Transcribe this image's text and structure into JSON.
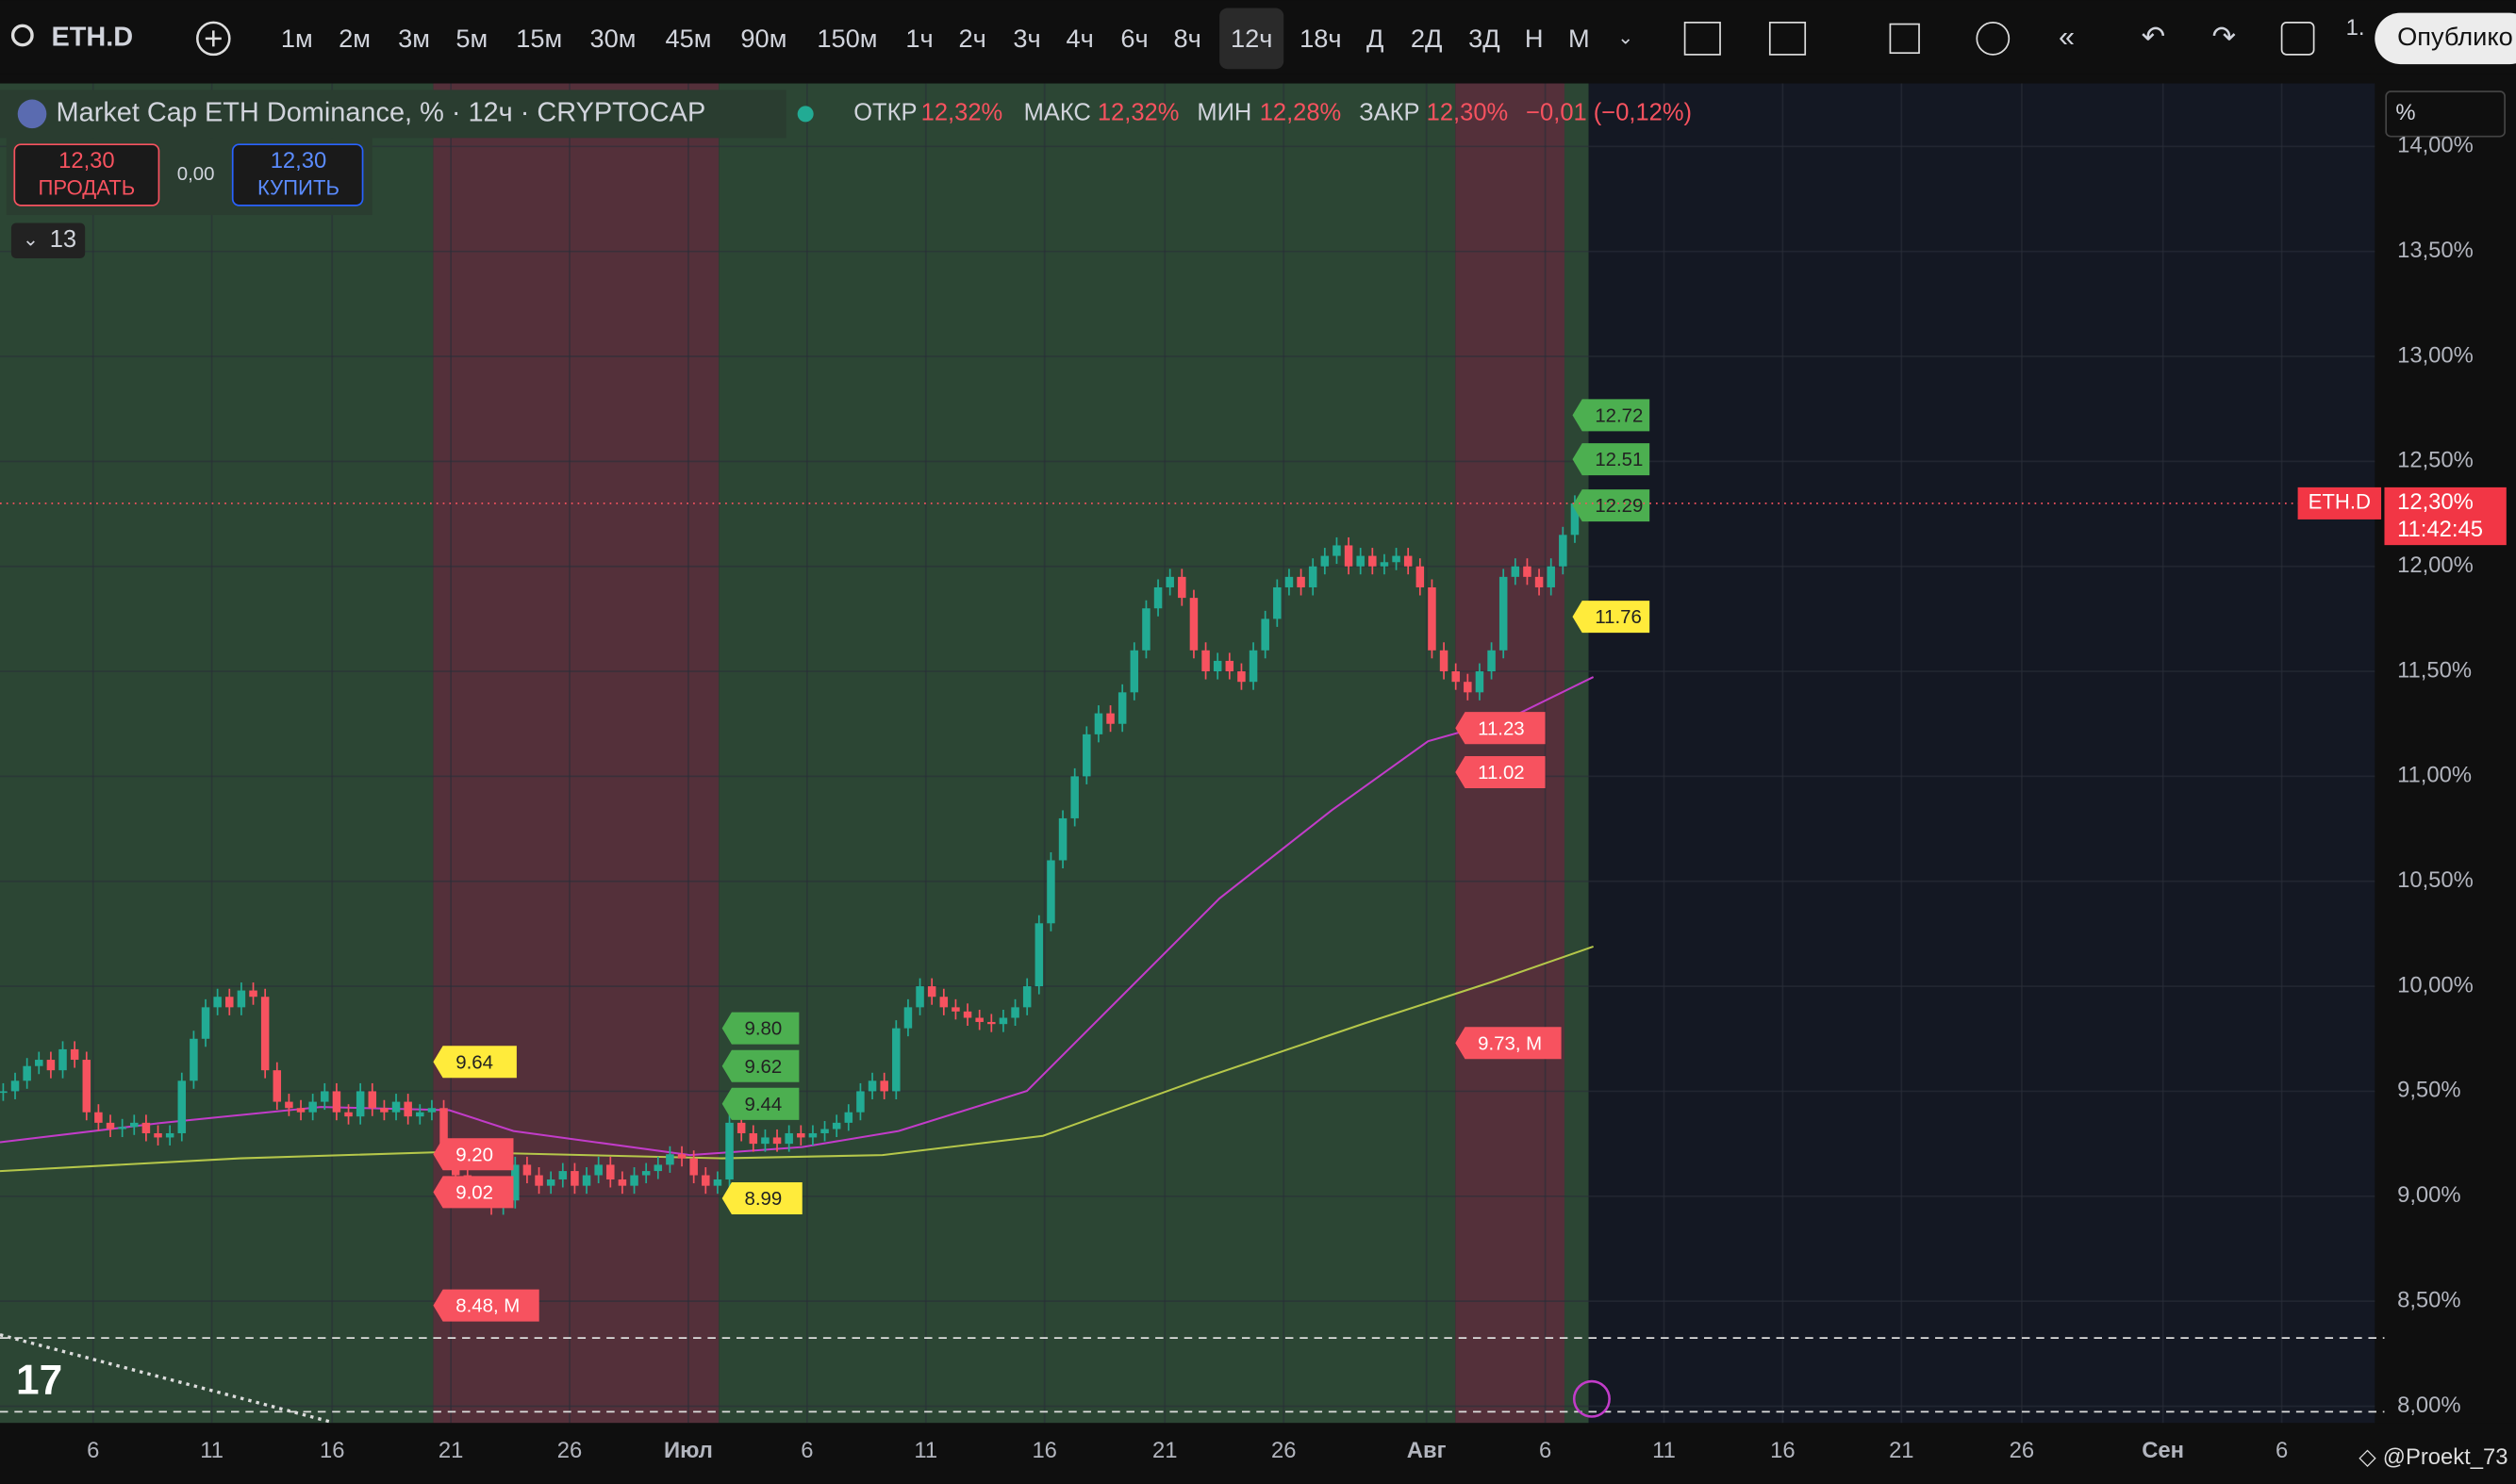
{
  "toolbar": {
    "symbol": "ETH.D",
    "intervals": [
      "1м",
      "2м",
      "3м",
      "5м",
      "15м",
      "30м",
      "45м",
      "90м",
      "150м",
      "1ч",
      "2ч",
      "3ч",
      "4ч",
      "6ч",
      "8ч",
      "12ч",
      "18ч",
      "Д",
      "2Д",
      "3Д",
      "Н",
      "М"
    ],
    "active_interval": "12ч",
    "counter": "1.",
    "publish": "Опублико"
  },
  "legend": {
    "title": "Market Cap ETH Dominance, % · 12ч · CRYPTOCAP",
    "open_label": "ОТКР",
    "open": "12,32%",
    "high_label": "МАКС",
    "high": "12,32%",
    "low_label": "МИН",
    "low": "12,28%",
    "close_label": "ЗАКР",
    "close": "12,30%",
    "change": "−0,01 (−0,12%)"
  },
  "trade": {
    "sell_price": "12,30",
    "sell_label": "ПРОДАТЬ",
    "spread": "0,00",
    "buy_price": "12,30",
    "buy_label": "КУПИТЬ",
    "indicators_count": "13"
  },
  "scale_mode": "%",
  "watermark": "@Proekt_73",
  "chart_data": {
    "type": "candlestick",
    "up_color": "#22ab94",
    "down_color": "#f7525f",
    "closes": [
      9.5,
      9.55,
      9.62,
      9.65,
      9.6,
      9.7,
      9.65,
      9.4,
      9.35,
      9.32,
      9.33,
      9.35,
      9.3,
      9.28,
      9.3,
      9.55,
      9.75,
      9.9,
      9.95,
      9.9,
      9.98,
      9.95,
      9.6,
      9.45,
      9.42,
      9.4,
      9.45,
      9.5,
      9.4,
      9.38,
      9.5,
      9.42,
      9.4,
      9.45,
      9.38,
      9.4,
      9.42,
      9.2,
      9.1,
      9.05,
      9.0,
      8.95,
      8.98,
      9.15,
      9.1,
      9.05,
      9.08,
      9.12,
      9.05,
      9.1,
      9.15,
      9.08,
      9.05,
      9.1,
      9.12,
      9.15,
      9.2,
      9.18,
      9.1,
      9.05,
      9.08,
      9.35,
      9.3,
      9.25,
      9.28,
      9.25,
      9.3,
      9.28,
      9.3,
      9.32,
      9.35,
      9.4,
      9.5,
      9.55,
      9.5,
      9.8,
      9.9,
      10.0,
      9.95,
      9.9,
      9.88,
      9.85,
      9.83,
      9.82,
      9.85,
      9.9,
      10.0,
      10.3,
      10.6,
      10.8,
      11.0,
      11.2,
      11.3,
      11.25,
      11.4,
      11.6,
      11.8,
      11.9,
      11.95,
      11.85,
      11.6,
      11.5,
      11.55,
      11.5,
      11.45,
      11.6,
      11.75,
      11.9,
      11.95,
      11.9,
      12.0,
      12.05,
      12.1,
      12.0,
      12.05,
      12.0,
      12.02,
      12.05,
      12.0,
      11.9,
      11.6,
      11.5,
      11.45,
      11.4,
      11.5,
      11.6,
      11.95,
      12.0,
      11.95,
      11.9,
      12.0,
      12.15,
      12.3
    ],
    "ylim": [
      7.92,
      14.3
    ],
    "yticks": [
      {
        "value": 14,
        "label": "14,00%"
      },
      {
        "value": 13.5,
        "label": "13,50%"
      },
      {
        "value": 13,
        "label": "13,00%"
      },
      {
        "value": 12.5,
        "label": "12,50%"
      },
      {
        "value": 12,
        "label": "12,00%"
      },
      {
        "value": 11.5,
        "label": "11,50%"
      },
      {
        "value": 11,
        "label": "11,00%"
      },
      {
        "value": 10.5,
        "label": "10,50%"
      },
      {
        "value": 10,
        "label": "10,00%"
      },
      {
        "value": 9.5,
        "label": "9,50%"
      },
      {
        "value": 9,
        "label": "9,00%"
      },
      {
        "value": 8.5,
        "label": "8,50%"
      },
      {
        "value": 8,
        "label": "8,00%"
      }
    ],
    "xticks": [
      "6",
      "11",
      "16",
      "21",
      "26",
      "Июл",
      "6",
      "11",
      "16",
      "21",
      "26",
      "Авг",
      "6",
      "11",
      "16",
      "21",
      "26",
      "Сен",
      "6"
    ],
    "grid": true,
    "price_tag": {
      "symbol": "ETH.D",
      "value": 12.3,
      "label": "12,30%",
      "countdown": "11:42:45"
    },
    "annotations": [
      {
        "value": 9.64,
        "label": "9.64",
        "color": "#ffeb3b"
      },
      {
        "value": 9.2,
        "label": "9.20",
        "color": "#f7525f"
      },
      {
        "value": 9.02,
        "label": "9.02",
        "color": "#f7525f"
      },
      {
        "value": 8.48,
        "label": "8.48, М",
        "color": "#f7525f"
      },
      {
        "value": 9.8,
        "label": "9.80",
        "color": "#4caf50"
      },
      {
        "value": 9.62,
        "label": "9.62",
        "color": "#4caf50"
      },
      {
        "value": 9.44,
        "label": "9.44",
        "color": "#4caf50"
      },
      {
        "value": 8.99,
        "label": "8.99",
        "color": "#ffeb3b"
      },
      {
        "value": 11.23,
        "label": "11.23",
        "color": "#f7525f"
      },
      {
        "value": 11.02,
        "label": "11.02",
        "color": "#f7525f"
      },
      {
        "value": 9.73,
        "label": "9.73, М",
        "color": "#f7525f"
      },
      {
        "value": 11.76,
        "label": "11.76",
        "color": "#ffeb3b"
      },
      {
        "value": 12.72,
        "label": "12.72",
        "color": "#4caf50"
      },
      {
        "value": 12.51,
        "label": "12.51",
        "color": "#4caf50"
      },
      {
        "value": 12.29,
        "label": "12.29",
        "color": "#4caf50"
      }
    ]
  }
}
